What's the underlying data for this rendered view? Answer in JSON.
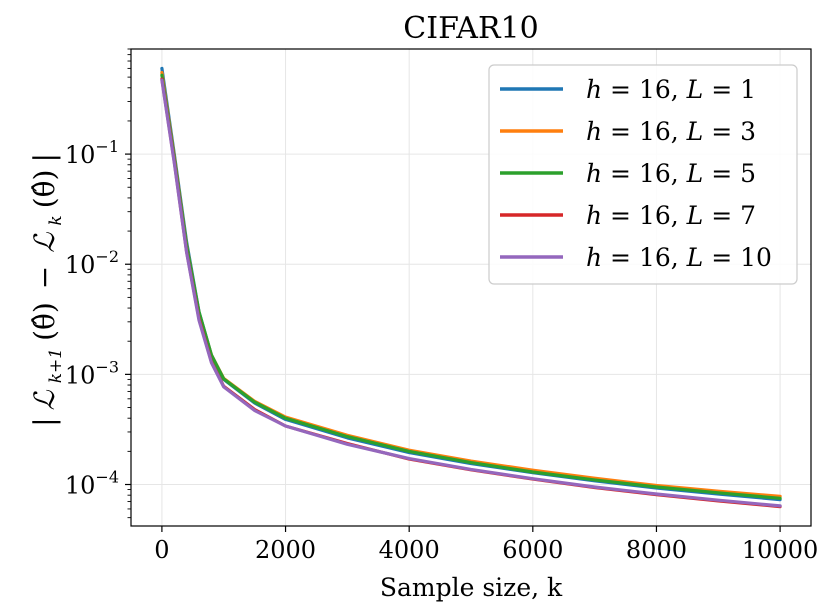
{
  "chart_data": {
    "type": "line",
    "title": "CIFAR10",
    "xlabel": "Sample size, k",
    "ylabel": "|L_{k+1}(θ̂) − L_k(θ̂)|",
    "ylabel_parts": {
      "bar_open": "|",
      "L1": "ℒ",
      "L1_sub": "k+1",
      "arg1": "(θ̂)",
      "minus": "−",
      "L2": "ℒ",
      "L2_sub": "k",
      "arg2": "(θ̂)",
      "bar_close": "|"
    },
    "x_scale": "linear",
    "y_scale": "log",
    "xlim": [
      -500,
      10500
    ],
    "ylim": [
      4.2e-05,
      0.9
    ],
    "grid": true,
    "legend_position": "top-right",
    "x_ticks": [
      {
        "value": 0,
        "label": "0"
      },
      {
        "value": 2000,
        "label": "2000"
      },
      {
        "value": 4000,
        "label": "4000"
      },
      {
        "value": 6000,
        "label": "6000"
      },
      {
        "value": 8000,
        "label": "8000"
      },
      {
        "value": 10000,
        "label": "10000"
      }
    ],
    "y_ticks": [
      {
        "value": 0.1,
        "base": "10",
        "exp": "−1"
      },
      {
        "value": 0.01,
        "base": "10",
        "exp": "−2"
      },
      {
        "value": 0.001,
        "base": "10",
        "exp": "−3"
      },
      {
        "value": 0.0001,
        "base": "10",
        "exp": "−4"
      }
    ],
    "x": [
      0,
      200,
      400,
      600,
      800,
      1000,
      1500,
      2000,
      3000,
      4000,
      5000,
      6000,
      7000,
      8000,
      9000,
      10000
    ],
    "series": [
      {
        "name": "h = 16, L = 1",
        "h": "h",
        "h_val": "16",
        "L": "L",
        "L_val": "1",
        "color": "#1f77b4",
        "values": [
          0.6,
          0.1,
          0.016,
          0.0037,
          0.0015,
          0.0009,
          0.00055,
          0.00039,
          0.000265,
          0.000195,
          0.000155,
          0.000128,
          0.000108,
          9.3e-05,
          8.2e-05,
          7.3e-05
        ]
      },
      {
        "name": "h = 16, L = 3",
        "h": "h",
        "h_val": "16",
        "L": "L",
        "L_val": "3",
        "color": "#ff7f0e",
        "values": [
          0.55,
          0.095,
          0.015,
          0.0036,
          0.0015,
          0.00092,
          0.00057,
          0.00041,
          0.00028,
          0.000205,
          0.000163,
          0.000135,
          0.000114,
          9.8e-05,
          8.7e-05,
          7.8e-05
        ]
      },
      {
        "name": "h = 16, L = 5",
        "h": "h",
        "h_val": "16",
        "L": "L",
        "L_val": "5",
        "color": "#2ca02c",
        "values": [
          0.52,
          0.092,
          0.0148,
          0.0037,
          0.0015,
          0.00091,
          0.00056,
          0.0004,
          0.000272,
          0.0002,
          0.000158,
          0.00013,
          0.00011,
          9.5e-05,
          8.4e-05,
          7.5e-05
        ]
      },
      {
        "name": "h = 16, L = 7",
        "h": "h",
        "h_val": "16",
        "L": "L",
        "L_val": "7",
        "color": "#d62728",
        "values": [
          0.48,
          0.085,
          0.013,
          0.0032,
          0.0013,
          0.00078,
          0.00048,
          0.00034,
          0.000235,
          0.00017,
          0.000136,
          0.000112,
          9.4e-05,
          8.1e-05,
          7.1e-05,
          6.3e-05
        ]
      },
      {
        "name": "h = 16, L = 10",
        "h": "h",
        "h_val": "16",
        "L": "L",
        "L_val": "10",
        "color": "#9467bd",
        "values": [
          0.47,
          0.083,
          0.0128,
          0.0031,
          0.00128,
          0.00077,
          0.00047,
          0.00034,
          0.000232,
          0.000172,
          0.000137,
          0.000113,
          9.5e-05,
          8.2e-05,
          7.2e-05,
          6.4e-05
        ]
      }
    ]
  }
}
